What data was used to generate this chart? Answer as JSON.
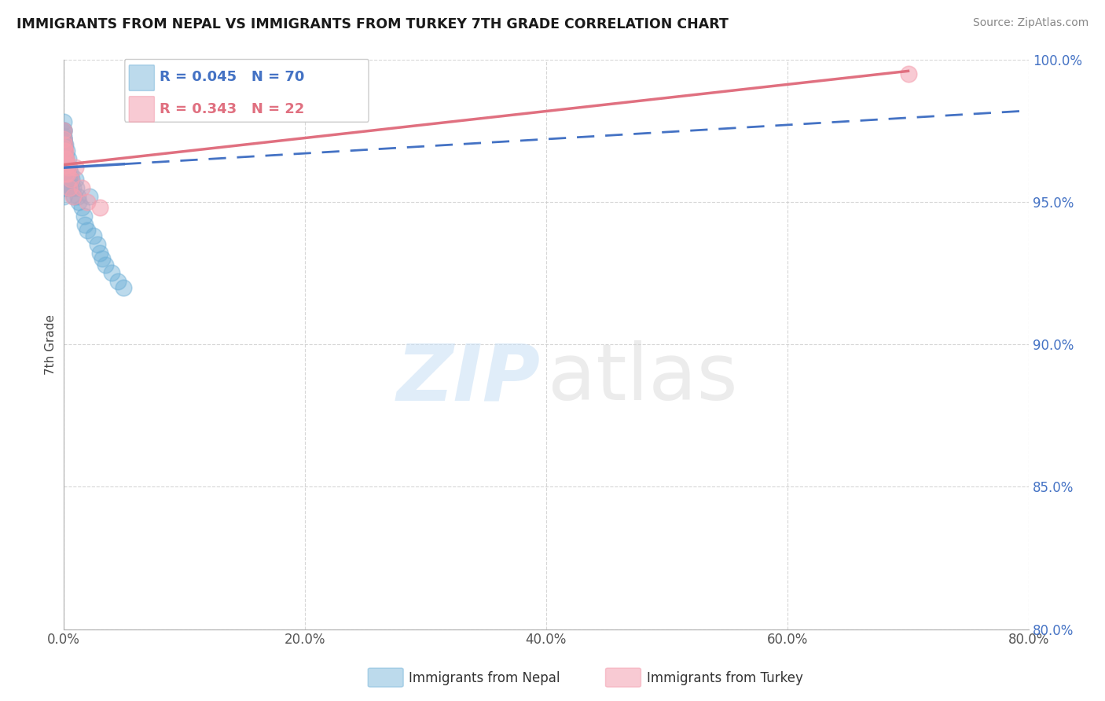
{
  "title": "IMMIGRANTS FROM NEPAL VS IMMIGRANTS FROM TURKEY 7TH GRADE CORRELATION CHART",
  "source": "Source: ZipAtlas.com",
  "ylabel": "7th Grade",
  "xlim": [
    0.0,
    80.0
  ],
  "ylim": [
    80.0,
    100.0
  ],
  "xticks": [
    0.0,
    20.0,
    40.0,
    60.0,
    80.0
  ],
  "yticks": [
    80.0,
    85.0,
    90.0,
    95.0,
    100.0
  ],
  "nepal_color": "#6baed6",
  "turkey_color": "#f4a0b0",
  "nepal_line_color": "#4472c4",
  "turkey_line_color": "#e07080",
  "nepal_R": 0.045,
  "nepal_N": 70,
  "turkey_R": 0.343,
  "turkey_N": 22,
  "legend_labels": [
    "Immigrants from Nepal",
    "Immigrants from Turkey"
  ],
  "nepal_x": [
    0.02,
    0.03,
    0.04,
    0.05,
    0.05,
    0.06,
    0.07,
    0.08,
    0.1,
    0.11,
    0.12,
    0.13,
    0.14,
    0.15,
    0.18,
    0.2,
    0.22,
    0.25,
    0.28,
    0.3,
    0.32,
    0.35,
    0.38,
    0.4,
    0.42,
    0.45,
    0.5,
    0.55,
    0.6,
    0.65,
    0.7,
    0.8,
    0.9,
    1.0,
    1.1,
    1.2,
    1.3,
    1.5,
    1.7,
    1.8,
    2.0,
    2.2,
    2.5,
    2.8,
    3.0,
    3.2,
    3.5,
    4.0,
    4.5,
    5.0,
    0.0,
    0.0,
    0.0,
    0.0,
    0.0,
    0.0,
    0.0,
    0.0,
    0.0,
    0.0,
    0.01,
    0.01,
    0.01,
    0.01,
    0.01,
    0.02,
    0.02,
    0.02,
    0.03,
    0.03
  ],
  "nepal_y": [
    97.5,
    97.2,
    97.0,
    96.8,
    96.5,
    96.2,
    95.8,
    95.5,
    97.0,
    96.8,
    96.6,
    96.2,
    95.8,
    95.5,
    97.0,
    96.5,
    96.2,
    95.8,
    95.5,
    96.8,
    96.2,
    95.8,
    95.5,
    96.5,
    96.0,
    95.5,
    96.2,
    95.8,
    96.0,
    95.5,
    95.8,
    95.5,
    95.2,
    95.8,
    95.5,
    95.2,
    95.0,
    94.8,
    94.5,
    94.2,
    94.0,
    95.2,
    93.8,
    93.5,
    93.2,
    93.0,
    92.8,
    92.5,
    92.2,
    92.0,
    97.8,
    97.5,
    97.2,
    97.0,
    96.8,
    96.5,
    96.2,
    95.8,
    95.5,
    95.2,
    97.5,
    97.2,
    97.0,
    96.8,
    96.5,
    97.3,
    97.0,
    96.8,
    97.2,
    97.0
  ],
  "turkey_x": [
    0.02,
    0.03,
    0.04,
    0.08,
    0.1,
    0.12,
    0.15,
    0.18,
    0.2,
    0.22,
    0.25,
    0.3,
    0.35,
    0.4,
    0.5,
    0.6,
    0.8,
    1.0,
    1.5,
    2.0,
    3.0,
    70.0
  ],
  "turkey_y": [
    97.5,
    97.2,
    96.9,
    97.0,
    96.8,
    96.5,
    96.8,
    96.5,
    96.3,
    96.0,
    96.5,
    96.3,
    96.0,
    96.2,
    95.5,
    95.8,
    95.2,
    96.2,
    95.5,
    95.0,
    94.8,
    99.5
  ],
  "nepal_line_x0": 0.0,
  "nepal_line_x_solid_end": 5.0,
  "nepal_line_y0": 96.2,
  "nepal_line_slope": 0.025,
  "turkey_line_x0": 0.0,
  "turkey_line_y0": 96.3,
  "turkey_line_slope": 0.047
}
